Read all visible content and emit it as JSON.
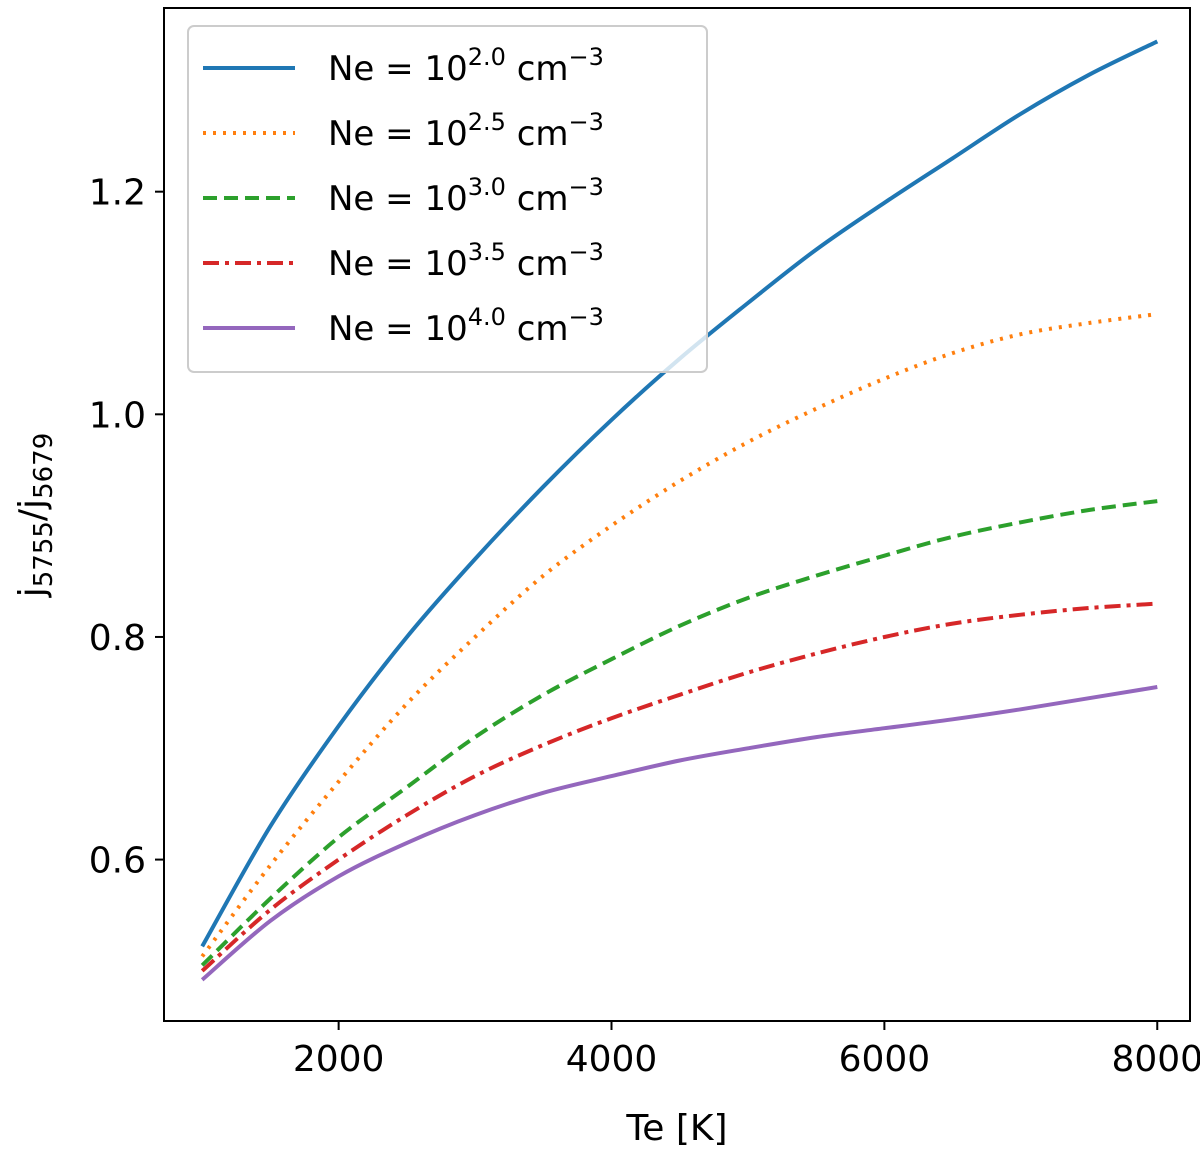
{
  "chart_data": {
    "type": "line",
    "xlabel": "Te [K]",
    "ylabel": {
      "base": "j",
      "num_sub": "5755",
      "sep": "/",
      "den_base": "j",
      "den_sub": "5679"
    },
    "xlim": [
      720,
      8240
    ],
    "ylim": [
      0.455,
      1.365
    ],
    "xticks": [
      2000,
      4000,
      6000,
      8000
    ],
    "yticks": [
      0.6,
      0.8,
      1.0,
      1.2
    ],
    "xtick_labels": [
      "2000",
      "4000",
      "6000",
      "8000"
    ],
    "ytick_labels": [
      "0.6",
      "0.8",
      "1.0",
      "1.2"
    ],
    "grid": false,
    "legend_position": "top-left",
    "x": [
      1000,
      1500,
      2000,
      2500,
      3000,
      3500,
      4000,
      4500,
      5000,
      5500,
      6000,
      6500,
      7000,
      7500,
      8000
    ],
    "series": [
      {
        "key": "ne20",
        "legend": {
          "prefix": "Ne = 10",
          "sup": "2.0",
          "unit": "cm",
          "unit_sup": "−3"
        },
        "color": "#1f77b4",
        "style": "solid",
        "values": [
          0.522,
          0.63,
          0.72,
          0.8,
          0.87,
          0.935,
          0.995,
          1.05,
          1.1,
          1.148,
          1.19,
          1.23,
          1.27,
          1.305,
          1.335
        ]
      },
      {
        "key": "ne25",
        "legend": {
          "prefix": "Ne = 10",
          "sup": "2.5",
          "unit": "cm",
          "unit_sup": "−3"
        },
        "color": "#ff7f0e",
        "style": "dotted",
        "values": [
          0.513,
          0.595,
          0.67,
          0.74,
          0.8,
          0.855,
          0.9,
          0.94,
          0.975,
          1.005,
          1.032,
          1.055,
          1.072,
          1.082,
          1.09
        ]
      },
      {
        "key": "ne30",
        "legend": {
          "prefix": "Ne = 10",
          "sup": "3.0",
          "unit": "cm",
          "unit_sup": "−3"
        },
        "color": "#2ca02c",
        "style": "dashed",
        "values": [
          0.505,
          0.565,
          0.62,
          0.665,
          0.71,
          0.748,
          0.78,
          0.81,
          0.835,
          0.855,
          0.873,
          0.89,
          0.903,
          0.914,
          0.922
        ]
      },
      {
        "key": "ne35",
        "legend": {
          "prefix": "Ne = 10",
          "sup": "3.5",
          "unit": "cm",
          "unit_sup": "−3"
        },
        "color": "#d62728",
        "style": "dashdot",
        "values": [
          0.5,
          0.555,
          0.6,
          0.64,
          0.675,
          0.703,
          0.727,
          0.748,
          0.768,
          0.785,
          0.8,
          0.812,
          0.82,
          0.826,
          0.83
        ]
      },
      {
        "key": "ne40",
        "legend": {
          "prefix": "Ne = 10",
          "sup": "4.0",
          "unit": "cm",
          "unit_sup": "−3"
        },
        "color": "#9467bd",
        "style": "solid",
        "values": [
          0.492,
          0.545,
          0.585,
          0.615,
          0.64,
          0.66,
          0.675,
          0.689,
          0.7,
          0.71,
          0.718,
          0.726,
          0.735,
          0.745,
          0.755
        ]
      }
    ]
  }
}
